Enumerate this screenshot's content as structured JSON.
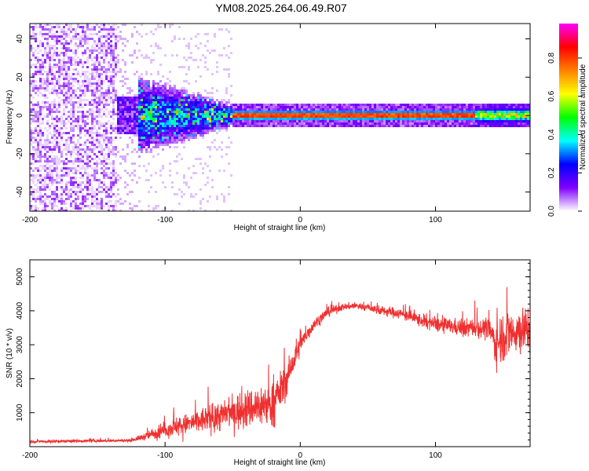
{
  "title": "YM08.2025.264.06.49.R07",
  "chart_data": [
    {
      "type": "heatmap",
      "title": "YM08.2025.264.06.49.R07",
      "xlabel": "Height of straight line (km)",
      "ylabel": "Frequency (Hz)",
      "xlim": [
        -200,
        170
      ],
      "ylim": [
        -50,
        48
      ],
      "x_ticks": [
        -200,
        -100,
        0,
        100
      ],
      "y_ticks": [
        -40,
        -20,
        0,
        20,
        40
      ],
      "colorbar": {
        "label": "Normalized spectral amplitude",
        "range": [
          0,
          0.98
        ],
        "ticks": [
          "0.0",
          "0.2",
          "0.4",
          "0.6",
          "0.8"
        ],
        "colormap": [
          "#ffffff",
          "#8000ff",
          "#0000ff",
          "#00ffff",
          "#00ff00",
          "#ffff00",
          "#ff8000",
          "#ff0000",
          "#ff00ff"
        ]
      },
      "zones": [
        {
          "x_range": [
            -200,
            -135
          ],
          "freq_spread": [
            -50,
            48
          ],
          "amplitude": 0.05,
          "description_of": "broadband noise"
        },
        {
          "x_range": [
            -135,
            -50
          ],
          "freq_spread": [
            -12,
            12
          ],
          "amplitude": 0.3
        },
        {
          "x_range": [
            -50,
            130
          ],
          "freq_spread": [
            -2,
            2
          ],
          "amplitude": 0.95
        },
        {
          "x_range": [
            130,
            170
          ],
          "freq_spread": [
            -5,
            5
          ],
          "amplitude": 0.7
        }
      ]
    },
    {
      "type": "line",
      "xlabel": "Height of straight line (km)",
      "ylabel": "SNR (10 * v/v)",
      "xlim": [
        -200,
        170
      ],
      "ylim": [
        0,
        5500
      ],
      "x_ticks": [
        -200,
        -100,
        0,
        100
      ],
      "y_ticks": [
        1000,
        2000,
        3000,
        4000,
        5000
      ],
      "color": "#f03030",
      "series": [
        {
          "name": "SNR",
          "x": [
            -200,
            -180,
            -160,
            -140,
            -125,
            -115,
            -100,
            -90,
            -80,
            -70,
            -60,
            -50,
            -40,
            -30,
            -20,
            -10,
            0,
            10,
            20,
            30,
            40,
            50,
            60,
            70,
            80,
            90,
            100,
            110,
            120,
            130,
            140,
            145,
            150,
            160,
            170
          ],
          "values": [
            150,
            160,
            170,
            175,
            185,
            300,
            500,
            600,
            700,
            800,
            900,
            1000,
            1100,
            1200,
            1250,
            2000,
            3000,
            3600,
            3950,
            4100,
            4150,
            4100,
            4000,
            3950,
            3850,
            3700,
            3600,
            3550,
            3500,
            3500,
            3450,
            3000,
            3300,
            3400,
            3500
          ],
          "amplitude": [
            60,
            60,
            60,
            60,
            60,
            150,
            350,
            400,
            450,
            550,
            650,
            750,
            800,
            900,
            900,
            700,
            400,
            250,
            200,
            150,
            150,
            150,
            200,
            220,
            250,
            280,
            300,
            320,
            350,
            400,
            450,
            900,
            1100,
            1000,
            1000
          ]
        }
      ]
    }
  ]
}
